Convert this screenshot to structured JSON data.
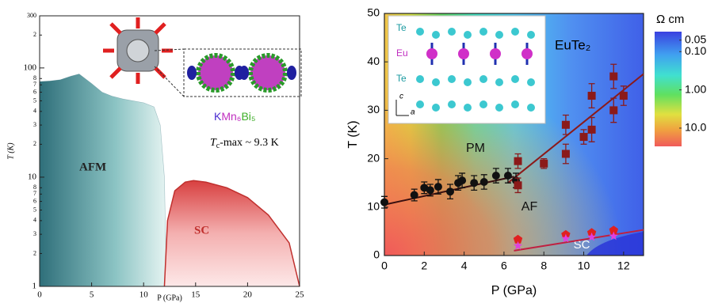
{
  "chart_data": [
    {
      "type": "area",
      "x_label": "P (GPa)",
      "y_label": "T (K)",
      "log_y": true,
      "xlim": [
        0,
        25
      ],
      "ylim": [
        1,
        300
      ],
      "xticks": [
        0,
        5,
        10,
        15,
        20,
        25
      ],
      "yticks": [
        1,
        2,
        3,
        4,
        5,
        6,
        7,
        8,
        10,
        {
          "value": 20,
          "label": "2"
        },
        {
          "value": 30,
          "label": "3"
        },
        {
          "value": 40,
          "label": "4"
        },
        {
          "value": 50,
          "label": "5"
        },
        {
          "value": 60,
          "label": "6"
        },
        {
          "value": 70,
          "label": "7"
        },
        {
          "value": 80,
          "label": "8"
        },
        100,
        {
          "value": 200,
          "label": "2"
        },
        300
      ],
      "series": [
        {
          "name": "AFM",
          "color": "#2f6f7a",
          "x": [
            0,
            1,
            2,
            3,
            3.8,
            5,
            6,
            7,
            8,
            10,
            11,
            11.6,
            12,
            12.2
          ],
          "values": [
            75,
            76,
            78,
            84,
            88,
            72,
            60,
            55,
            52,
            48,
            44,
            30,
            10,
            1
          ]
        },
        {
          "name": "SC",
          "color": "#c0302e",
          "x": [
            12,
            12.3,
            13,
            14,
            14.8,
            16,
            18,
            20,
            22,
            24,
            25
          ],
          "values": [
            1,
            4,
            7.5,
            9,
            9.3,
            9,
            8,
            6.5,
            4.5,
            2.5,
            1
          ]
        }
      ],
      "compound": [
        {
          "text": "K",
          "color": "#4a2bd0"
        },
        {
          "text": "Mn₆",
          "color": "#c030c0"
        },
        {
          "text": "Bi₅",
          "color": "#3fae2a"
        }
      ],
      "annotation": {
        "symbol": "T",
        "subscript": "c",
        "text": "-max ~ 9.3 K"
      }
    },
    {
      "type": "scatter",
      "title": "EuTe₂",
      "x_label": "P (GPa)",
      "y_label": "T (K)",
      "xlim": [
        0,
        13
      ],
      "ylim": [
        0,
        50
      ],
      "xticks": [
        0,
        2,
        4,
        6,
        8,
        10,
        12
      ],
      "yticks": [
        0,
        10,
        20,
        30,
        40,
        50
      ],
      "regions": [
        "PM",
        "AF",
        "SC"
      ],
      "series": [
        {
          "color": "#111111",
          "marker": "circle",
          "x": [
            0,
            1.5,
            2,
            2.3,
            2.7,
            3.3,
            3.7,
            3.9,
            4.5,
            5,
            5.6,
            6.2,
            6.6
          ],
          "values": [
            11,
            12.5,
            14,
            13.5,
            14.2,
            13.2,
            15,
            15.5,
            15,
            15.2,
            16.5,
            16.5,
            15.5
          ],
          "errors": [
            1.2,
            1.2,
            1.2,
            1.2,
            1.5,
            1.5,
            1.5,
            1.5,
            1.5,
            1.5,
            1.5,
            1.5,
            1.5
          ]
        },
        {
          "color": "#8b1a1a",
          "marker": "square",
          "x": [
            6.7,
            6.7,
            8,
            9.1,
            9.1,
            10,
            10.4,
            10.4,
            11.5,
            11.5,
            12
          ],
          "values": [
            19.5,
            14.5,
            19,
            27,
            21,
            24.5,
            33,
            26,
            37,
            30,
            33
          ],
          "errors": [
            1.5,
            1.5,
            1,
            2,
            2,
            1.5,
            2.5,
            2.5,
            2.5,
            2.5,
            2
          ]
        },
        {
          "color": "#e02020",
          "marker": "pentagon",
          "x": [
            6.7,
            9.1,
            10.4,
            11.5
          ],
          "values": [
            3.3,
            4.3,
            4.7,
            5.2
          ]
        },
        {
          "color": "#e040e0",
          "marker": "star",
          "x": [
            6.7,
            9.1,
            10.4,
            11.5
          ],
          "values": [
            2,
            3.5,
            3.8,
            4
          ]
        }
      ],
      "fits": [
        {
          "color": "#3a1010",
          "x": [
            0,
            6.5
          ],
          "values": [
            10.5,
            16.3
          ]
        },
        {
          "color": "#8b1a1a",
          "x": [
            6.2,
            13
          ],
          "values": [
            15,
            37.5
          ]
        },
        {
          "color": "#c02040",
          "x": [
            6.5,
            13
          ],
          "values": [
            1,
            5.3
          ]
        }
      ],
      "inset_labels": [
        "Te",
        "Eu",
        "Te",
        "c",
        "a"
      ],
      "colorbar": {
        "label": "Ω cm",
        "log": true,
        "clim": [
          0.03,
          30
        ],
        "ticks": [
          0.05,
          {
            "value": 0.1,
            "label": "0.10"
          },
          {
            "value": 1,
            "label": "1.00"
          },
          {
            "value": 10,
            "label": "10.0"
          }
        ]
      }
    }
  ]
}
